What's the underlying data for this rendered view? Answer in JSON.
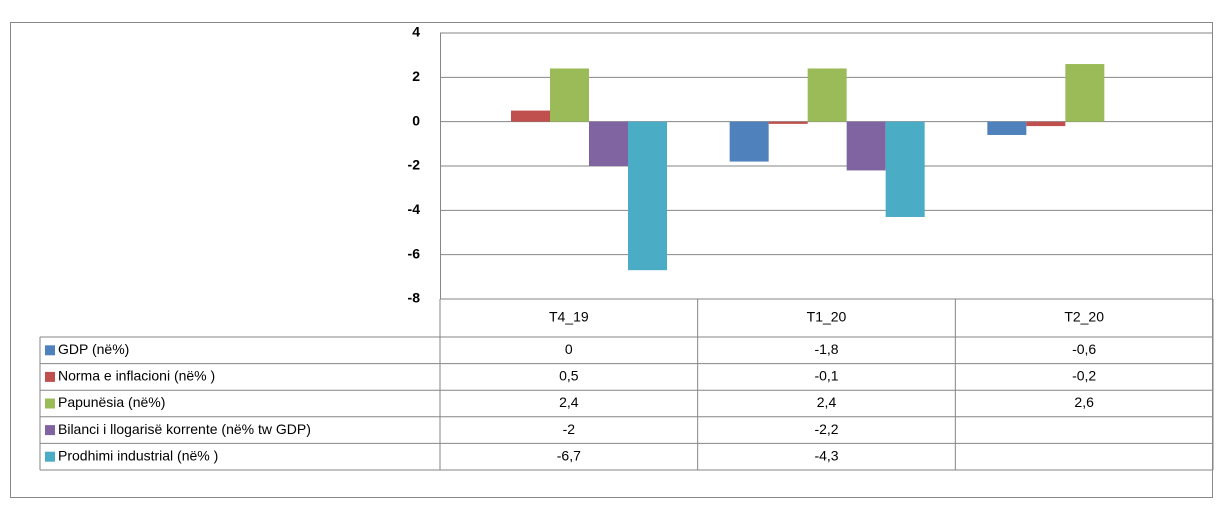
{
  "chart_data": {
    "type": "bar",
    "categories": [
      "T4_19",
      "T1_20",
      "T2_20"
    ],
    "ylim": [
      -8,
      4
    ],
    "yticks": [
      4,
      2,
      0,
      -2,
      -4,
      -6,
      -8
    ],
    "grid": true,
    "series": [
      {
        "name": "GDP  (në%)",
        "color": "#4f81bd",
        "values": [
          0,
          -1.8,
          -0.6
        ],
        "value_labels": [
          "0",
          "-1,8",
          "-0,6"
        ]
      },
      {
        "name": "Norma e inflacioni (në% )",
        "color": "#c0504d",
        "values": [
          0.5,
          -0.1,
          -0.2
        ],
        "value_labels": [
          "0,5",
          "-0,1",
          "-0,2"
        ]
      },
      {
        "name": "Papunësia (në%)",
        "color": "#9bbb59",
        "values": [
          2.4,
          2.4,
          2.6
        ],
        "value_labels": [
          "2,4",
          "2,4",
          "2,6"
        ]
      },
      {
        "name": "Bilanci i llogarisë korrente  (në% tw GDP)",
        "color": "#8064a2",
        "values": [
          -2,
          -2.2,
          null
        ],
        "value_labels": [
          "-2",
          "-2,2",
          null
        ]
      },
      {
        "name": "Prodhimi industrial (në% )",
        "color": "#4bacc6",
        "values": [
          -6.7,
          -4.3,
          null
        ],
        "value_labels": [
          "-6,7",
          "-4,3",
          null
        ]
      }
    ]
  }
}
